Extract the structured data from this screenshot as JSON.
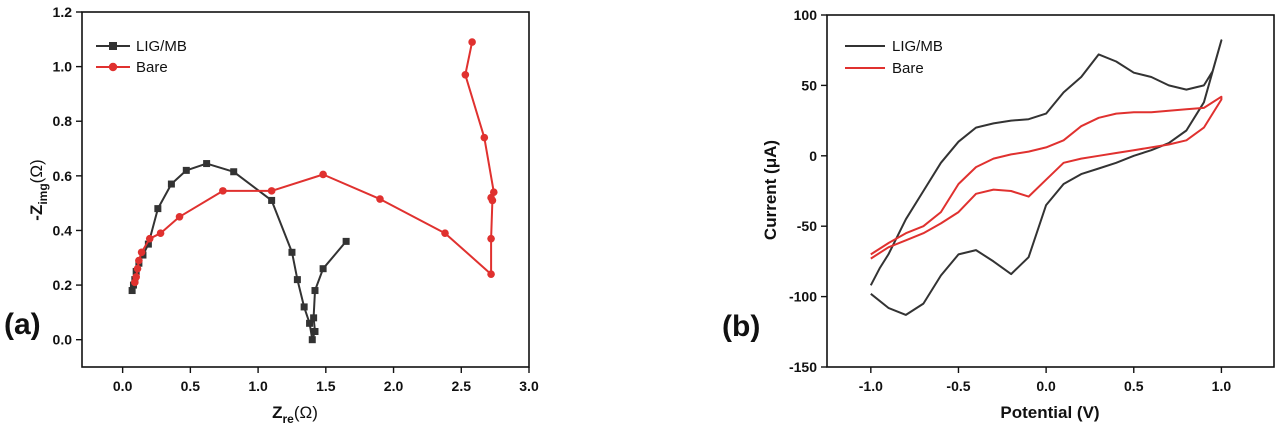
{
  "chart_data": [
    {
      "type": "line",
      "panel_label": "(a)",
      "xlim": [
        -0.3,
        3.0
      ],
      "ylim": [
        -0.1,
        1.2
      ],
      "xticks": [
        "0.0",
        "0.5",
        "1.0",
        "1.5",
        "2.0",
        "2.5",
        "3.0"
      ],
      "yticks": [
        "0.0",
        "0.2",
        "0.4",
        "0.6",
        "0.8",
        "1.0",
        "1.2"
      ],
      "xlabel": {
        "main": "Z",
        "sub": "re",
        "tail": "(Ω)"
      },
      "ylabel": {
        "main": "-Z",
        "sub": "img",
        "tail": "(Ω)"
      },
      "legend_position": "top-left",
      "series": [
        {
          "name": "LIG/MB",
          "color": "#333333",
          "marker": "square",
          "x": [
            0.07,
            0.08,
            0.09,
            0.1,
            0.12,
            0.15,
            0.19,
            0.26,
            0.36,
            0.47,
            0.62,
            0.82,
            1.1,
            1.25,
            1.29,
            1.34,
            1.38,
            1.4,
            1.42,
            1.41,
            1.42,
            1.48,
            1.65
          ],
          "y": [
            0.18,
            0.2,
            0.22,
            0.25,
            0.28,
            0.31,
            0.35,
            0.48,
            0.57,
            0.62,
            0.645,
            0.615,
            0.51,
            0.32,
            0.22,
            0.12,
            0.06,
            0.0,
            0.03,
            0.08,
            0.18,
            0.26,
            0.36
          ]
        },
        {
          "name": "Bare",
          "color": "#e0312f",
          "marker": "circle",
          "x": [
            0.09,
            0.1,
            0.11,
            0.12,
            0.14,
            0.2,
            0.28,
            0.42,
            0.74,
            1.1,
            1.48,
            1.9,
            2.38,
            2.72,
            2.72,
            2.73,
            2.72,
            2.74,
            2.67,
            2.53,
            2.58
          ],
          "y": [
            0.21,
            0.23,
            0.26,
            0.29,
            0.32,
            0.37,
            0.39,
            0.45,
            0.545,
            0.545,
            0.605,
            0.515,
            0.39,
            0.24,
            0.37,
            0.51,
            0.52,
            0.54,
            0.74,
            0.97,
            1.09
          ]
        }
      ]
    },
    {
      "type": "line",
      "panel_label": "(b)",
      "xlim": [
        -1.25,
        1.3
      ],
      "ylim": [
        -150,
        100
      ],
      "xticks": [
        "-1.0",
        "-0.5",
        "0.0",
        "0.5",
        "1.0"
      ],
      "yticks": [
        "-150",
        "-100",
        "-50",
        "0",
        "50",
        "100"
      ],
      "xlabel": "Potential (V)",
      "ylabel": "Current (μA)",
      "legend_position": "top-left",
      "series": [
        {
          "name": "LIG/MB",
          "color": "#333333",
          "x": [
            -1.0,
            -0.9,
            -0.8,
            -0.7,
            -0.6,
            -0.5,
            -0.4,
            -0.3,
            -0.2,
            -0.1,
            0.0,
            0.1,
            0.2,
            0.3,
            0.4,
            0.5,
            0.6,
            0.7,
            0.8,
            0.9,
            1.0,
            0.95,
            0.9,
            0.8,
            0.7,
            0.6,
            0.5,
            0.4,
            0.3,
            0.2,
            0.1,
            0.0,
            -0.1,
            -0.2,
            -0.3,
            -0.4,
            -0.5,
            -0.6,
            -0.7,
            -0.8,
            -0.9,
            -0.95,
            -1.0
          ],
          "y": [
            -98,
            -108,
            -113,
            -105,
            -85,
            -70,
            -67,
            -75,
            -84,
            -72,
            -35,
            -20,
            -13,
            -9,
            -5,
            0,
            4,
            9,
            18,
            38,
            82,
            60,
            50,
            47,
            50,
            56,
            59,
            67,
            72,
            56,
            45,
            30,
            26,
            25,
            23,
            20,
            10,
            -5,
            -25,
            -45,
            -70,
            -80,
            -92
          ]
        },
        {
          "name": "Bare",
          "color": "#e0312f",
          "x": [
            -1.0,
            -0.9,
            -0.8,
            -0.7,
            -0.6,
            -0.5,
            -0.4,
            -0.3,
            -0.2,
            -0.1,
            0.0,
            0.1,
            0.2,
            0.3,
            0.4,
            0.5,
            0.6,
            0.7,
            0.8,
            0.9,
            1.0,
            1.0,
            0.9,
            0.8,
            0.7,
            0.6,
            0.5,
            0.4,
            0.3,
            0.2,
            0.1,
            0.0,
            -0.1,
            -0.2,
            -0.3,
            -0.4,
            -0.5,
            -0.6,
            -0.7,
            -0.8,
            -0.9,
            -1.0
          ],
          "y": [
            -73,
            -65,
            -60,
            -55,
            -48,
            -40,
            -27,
            -24,
            -25,
            -29,
            -17,
            -5,
            -2,
            0,
            2,
            4,
            6,
            8,
            11,
            20,
            40,
            42,
            34,
            33,
            32,
            31,
            31,
            30,
            27,
            21,
            11,
            6,
            3,
            1,
            -2,
            -8,
            -20,
            -40,
            -50,
            -55,
            -62,
            -70
          ]
        }
      ]
    }
  ]
}
